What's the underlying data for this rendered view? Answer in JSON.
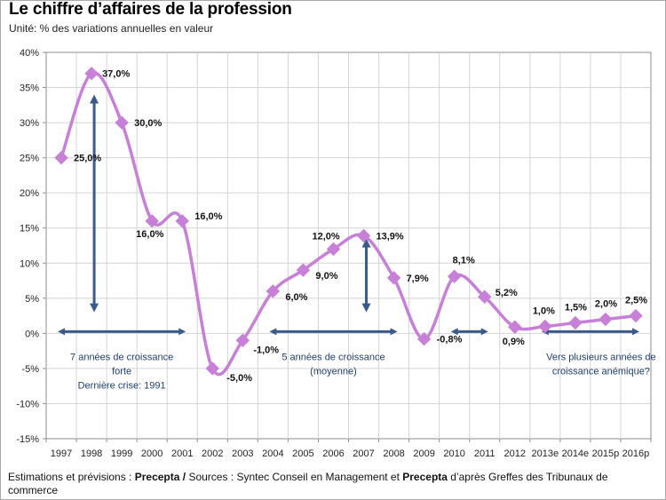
{
  "title": "Le chiffre d’affaires de la profession",
  "subtitle": "Unité: % des variations annuelles en valeur",
  "footer": {
    "part1": "Estimations et prévisions : ",
    "part2": "Precepta",
    "part3": " / ",
    "part4": "Sources : Syntec Conseil en Management et ",
    "part5": "Precepta",
    "part6": " d’après Greffes des Tribunaux de commerce"
  },
  "colors": {
    "line": "#c77fd8",
    "marker": "#c77fd8",
    "annotation_arrow": "#3a5a8a",
    "annotation_text": "#1f3f6e",
    "grid": "#d4d4d4",
    "plot_bg": "#ffffff"
  },
  "chart_data": {
    "type": "line",
    "x": [
      "1997",
      "1998",
      "1999",
      "2000",
      "2001",
      "2002",
      "2003",
      "2004",
      "2005",
      "2006",
      "2007",
      "2008",
      "2009",
      "2010",
      "2011",
      "2012",
      "2013e",
      "2014e",
      "2015p",
      "2016p"
    ],
    "series": [
      {
        "values": [
          25.0,
          37.0,
          30.0,
          16.0,
          16.0,
          -5.0,
          -1.0,
          6.0,
          9.0,
          12.0,
          13.9,
          7.9,
          -0.8,
          8.1,
          5.2,
          0.9,
          1.0,
          1.5,
          2.0,
          2.5
        ],
        "labels": [
          "25,0%",
          "37,0%",
          "30,0%",
          "16,0%",
          "16,0%",
          "-5,0%",
          "-1,0%",
          "6,0%",
          "9,0%",
          "12,0%",
          "13,9%",
          "7,9%",
          "-0,8%",
          "8,1%",
          "5,2%",
          "0,9%",
          "1,0%",
          "1,5%",
          "2,0%",
          "2,5%"
        ]
      }
    ],
    "ylim": [
      -15,
      40
    ],
    "yticks": [
      -15,
      -10,
      -5,
      0,
      5,
      10,
      15,
      20,
      25,
      30,
      35,
      40
    ],
    "ytick_labels": [
      "-15%",
      "-10%",
      "-5%",
      "0%",
      "5%",
      "10%",
      "15%",
      "20%",
      "25%",
      "30%",
      "35%",
      "40%"
    ],
    "grid": true,
    "smooth": true,
    "annotations": [
      {
        "type": "hspan",
        "from": "1997",
        "to": "2001",
        "lines": [
          "7 années de croissance",
          "forte",
          "Dernière crise: 1991"
        ]
      },
      {
        "type": "vspan",
        "at": "1998",
        "from_value": 3,
        "to_value": 34
      },
      {
        "type": "hspan",
        "from": "2004",
        "to": "2008",
        "lines": [
          "5 années de croissance",
          "(moyenne)"
        ]
      },
      {
        "type": "vspan",
        "at": "2007",
        "from_value": 3,
        "to_value": 13.5
      },
      {
        "type": "hspan",
        "from": "2010",
        "to": "2011",
        "lines": []
      },
      {
        "type": "hspan",
        "from": "2013e",
        "to": "2016p",
        "lines": [
          "Vers plusieurs années de",
          "croissance anémique?"
        ]
      }
    ]
  }
}
